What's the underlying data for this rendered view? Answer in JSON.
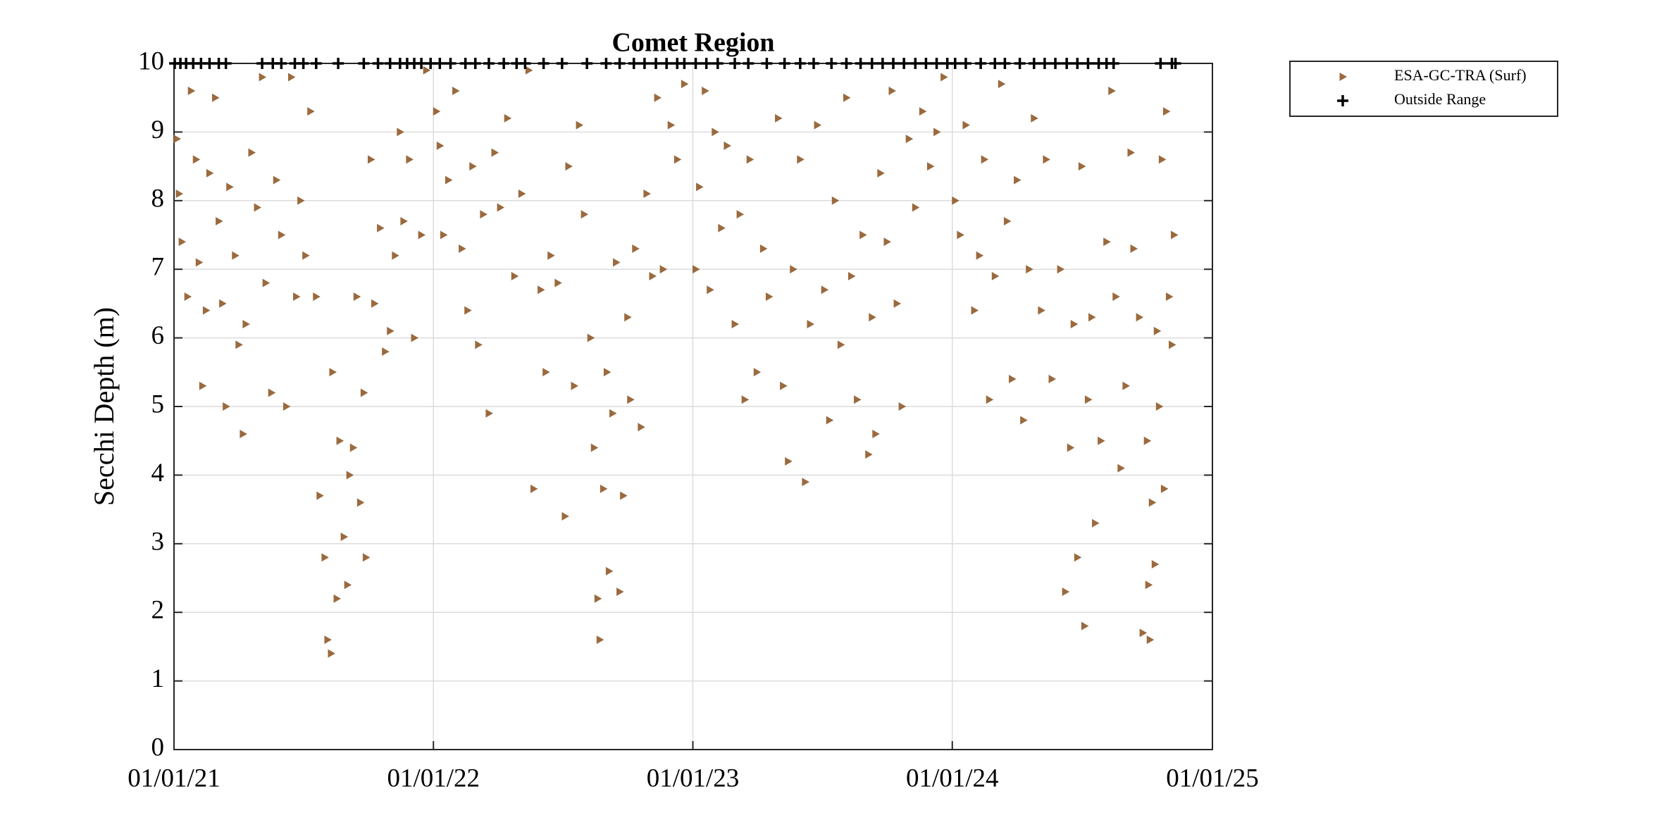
{
  "chart_data": {
    "type": "scatter",
    "title": "Comet Region",
    "y_label": "Secchi Depth (m)",
    "xlim": [
      "2021-01-01",
      "2025-01-01"
    ],
    "xticks": [
      {
        "value": "2021-01-01",
        "label": "01/01/21"
      },
      {
        "value": "2022-01-01",
        "label": "01/01/22"
      },
      {
        "value": "2023-01-01",
        "label": "01/01/23"
      },
      {
        "value": "2024-01-01",
        "label": "01/01/24"
      },
      {
        "value": "2025-01-01",
        "label": "01/01/25"
      }
    ],
    "ylim": [
      0,
      10
    ],
    "yticks": [
      0,
      1,
      2,
      3,
      4,
      5,
      6,
      7,
      8,
      9,
      10
    ],
    "grid": true,
    "legend": "outside-right",
    "series": [
      {
        "name": "ESA-GC-TRA (Surf)",
        "color": "#9a6a3e",
        "marker": "triangle-right",
        "x": [
          "2021-01-05",
          "2021-01-08",
          "2021-01-12",
          "2021-01-20",
          "2021-01-25",
          "2021-02-01",
          "2021-02-05",
          "2021-02-10",
          "2021-02-15",
          "2021-02-20",
          "2021-02-28",
          "2021-03-05",
          "2021-03-10",
          "2021-03-15",
          "2021-03-20",
          "2021-03-28",
          "2021-04-02",
          "2021-04-08",
          "2021-04-12",
          "2021-04-20",
          "2021-04-28",
          "2021-05-05",
          "2021-05-10",
          "2021-05-18",
          "2021-05-25",
          "2021-06-01",
          "2021-06-08",
          "2021-06-15",
          "2021-06-22",
          "2021-06-28",
          "2021-07-05",
          "2021-07-12",
          "2021-07-20",
          "2021-07-25",
          "2021-08-01",
          "2021-08-05",
          "2021-08-10",
          "2021-08-12",
          "2021-08-18",
          "2021-08-22",
          "2021-08-28",
          "2021-09-02",
          "2021-09-05",
          "2021-09-10",
          "2021-09-15",
          "2021-09-20",
          "2021-09-25",
          "2021-09-28",
          "2021-10-05",
          "2021-10-10",
          "2021-10-18",
          "2021-10-25",
          "2021-11-01",
          "2021-11-08",
          "2021-11-15",
          "2021-11-20",
          "2021-11-28",
          "2021-12-05",
          "2021-12-15",
          "2021-12-22",
          "2022-01-05",
          "2022-01-10",
          "2022-01-15",
          "2022-01-22",
          "2022-02-01",
          "2022-02-10",
          "2022-02-18",
          "2022-02-25",
          "2022-03-05",
          "2022-03-12",
          "2022-03-20",
          "2022-03-28",
          "2022-04-05",
          "2022-04-15",
          "2022-04-25",
          "2022-05-05",
          "2022-05-15",
          "2022-05-22",
          "2022-06-01",
          "2022-06-08",
          "2022-06-15",
          "2022-06-25",
          "2022-07-05",
          "2022-07-10",
          "2022-07-18",
          "2022-07-25",
          "2022-08-01",
          "2022-08-10",
          "2022-08-15",
          "2022-08-20",
          "2022-08-23",
          "2022-08-28",
          "2022-09-02",
          "2022-09-05",
          "2022-09-10",
          "2022-09-15",
          "2022-09-20",
          "2022-09-25",
          "2022-10-01",
          "2022-10-05",
          "2022-10-12",
          "2022-10-20",
          "2022-10-28",
          "2022-11-05",
          "2022-11-12",
          "2022-11-20",
          "2022-12-01",
          "2022-12-10",
          "2022-12-20",
          "2023-01-05",
          "2023-01-10",
          "2023-01-18",
          "2023-01-25",
          "2023-02-01",
          "2023-02-10",
          "2023-02-18",
          "2023-03-01",
          "2023-03-08",
          "2023-03-15",
          "2023-03-22",
          "2023-04-01",
          "2023-04-10",
          "2023-04-18",
          "2023-05-01",
          "2023-05-08",
          "2023-05-15",
          "2023-05-22",
          "2023-06-01",
          "2023-06-08",
          "2023-06-15",
          "2023-06-25",
          "2023-07-05",
          "2023-07-12",
          "2023-07-20",
          "2023-07-28",
          "2023-08-05",
          "2023-08-12",
          "2023-08-20",
          "2023-08-28",
          "2023-09-05",
          "2023-09-10",
          "2023-09-15",
          "2023-09-22",
          "2023-10-01",
          "2023-10-08",
          "2023-10-15",
          "2023-10-22",
          "2023-11-01",
          "2023-11-10",
          "2023-11-20",
          "2023-12-01",
          "2023-12-10",
          "2023-12-20",
          "2024-01-05",
          "2024-01-12",
          "2024-01-20",
          "2024-02-01",
          "2024-02-08",
          "2024-02-15",
          "2024-02-22",
          "2024-03-01",
          "2024-03-10",
          "2024-03-18",
          "2024-03-25",
          "2024-04-01",
          "2024-04-10",
          "2024-04-18",
          "2024-04-25",
          "2024-05-05",
          "2024-05-12",
          "2024-05-20",
          "2024-06-01",
          "2024-06-08",
          "2024-06-15",
          "2024-06-20",
          "2024-06-25",
          "2024-07-01",
          "2024-07-05",
          "2024-07-10",
          "2024-07-15",
          "2024-07-20",
          "2024-07-28",
          "2024-08-05",
          "2024-08-12",
          "2024-08-18",
          "2024-08-25",
          "2024-09-01",
          "2024-09-08",
          "2024-09-12",
          "2024-09-20",
          "2024-09-25",
          "2024-10-01",
          "2024-10-03",
          "2024-10-05",
          "2024-10-08",
          "2024-10-12",
          "2024-10-15",
          "2024-10-18",
          "2024-10-22",
          "2024-10-25",
          "2024-10-28",
          "2024-11-01",
          "2024-11-05",
          "2024-11-08"
        ],
        "values": [
          8.9,
          8.1,
          7.4,
          6.6,
          9.6,
          8.6,
          7.1,
          5.3,
          6.4,
          8.4,
          9.5,
          7.7,
          6.5,
          5.0,
          8.2,
          7.2,
          5.9,
          4.6,
          6.2,
          8.7,
          7.9,
          9.8,
          6.8,
          5.2,
          8.3,
          7.5,
          5.0,
          9.8,
          6.6,
          8.0,
          7.2,
          9.3,
          6.6,
          3.7,
          2.8,
          1.6,
          1.4,
          5.5,
          2.2,
          4.5,
          3.1,
          2.4,
          4.0,
          4.4,
          6.6,
          3.6,
          5.2,
          2.8,
          8.6,
          6.5,
          7.6,
          5.8,
          6.1,
          7.2,
          9.0,
          7.7,
          8.6,
          6.0,
          7.5,
          9.9,
          9.3,
          8.8,
          7.5,
          8.3,
          9.6,
          7.3,
          6.4,
          8.5,
          5.9,
          7.8,
          4.9,
          8.7,
          7.9,
          9.2,
          6.9,
          8.1,
          9.9,
          3.8,
          6.7,
          5.5,
          7.2,
          6.8,
          3.4,
          8.5,
          5.3,
          9.1,
          7.8,
          6.0,
          4.4,
          2.2,
          1.6,
          3.8,
          5.5,
          2.6,
          4.9,
          7.1,
          2.3,
          3.7,
          6.3,
          5.1,
          7.3,
          4.7,
          8.1,
          6.9,
          9.5,
          7.0,
          9.1,
          8.6,
          9.7,
          7.0,
          8.2,
          9.6,
          6.7,
          9.0,
          7.6,
          8.8,
          6.2,
          7.8,
          5.1,
          8.6,
          5.5,
          7.3,
          6.6,
          9.2,
          5.3,
          4.2,
          7.0,
          8.6,
          3.9,
          6.2,
          9.1,
          6.7,
          4.8,
          8.0,
          5.9,
          9.5,
          6.9,
          5.1,
          7.5,
          4.3,
          6.3,
          4.6,
          8.4,
          7.4,
          9.6,
          6.5,
          5.0,
          8.9,
          7.9,
          9.3,
          8.5,
          9.0,
          9.8,
          8.0,
          7.5,
          9.1,
          6.4,
          7.2,
          8.6,
          5.1,
          6.9,
          9.7,
          7.7,
          5.4,
          8.3,
          4.8,
          7.0,
          9.2,
          6.4,
          8.6,
          5.4,
          7.0,
          2.3,
          4.4,
          6.2,
          2.8,
          8.5,
          1.8,
          5.1,
          6.3,
          3.3,
          4.5,
          7.4,
          9.6,
          6.6,
          4.1,
          5.3,
          8.7,
          7.3,
          6.3,
          1.7,
          4.5,
          2.4,
          1.6,
          3.6,
          2.7,
          6.1,
          5.0,
          8.6,
          3.8,
          9.3,
          6.6,
          5.9,
          7.5
        ]
      },
      {
        "name": "Outside Range",
        "color": "#000000",
        "marker": "plus",
        "x": [
          "2021-01-02",
          "2021-01-10",
          "2021-01-18",
          "2021-01-28",
          "2021-02-08",
          "2021-02-20",
          "2021-03-05",
          "2021-03-15",
          "2021-05-05",
          "2021-05-20",
          "2021-06-01",
          "2021-06-20",
          "2021-07-02",
          "2021-07-20",
          "2021-08-20",
          "2021-09-25",
          "2021-10-15",
          "2021-11-01",
          "2021-11-15",
          "2021-11-25",
          "2021-12-05",
          "2021-12-15",
          "2021-12-28",
          "2022-01-10",
          "2022-01-25",
          "2022-02-15",
          "2022-03-01",
          "2022-03-20",
          "2022-04-10",
          "2022-04-28",
          "2022-05-10",
          "2022-06-05",
          "2022-07-01",
          "2022-08-05",
          "2022-09-01",
          "2022-09-20",
          "2022-10-10",
          "2022-10-25",
          "2022-11-10",
          "2022-11-25",
          "2022-12-10",
          "2022-12-20",
          "2023-01-05",
          "2023-01-20",
          "2023-02-05",
          "2023-03-01",
          "2023-03-20",
          "2023-04-15",
          "2023-05-10",
          "2023-06-01",
          "2023-06-20",
          "2023-07-15",
          "2023-08-05",
          "2023-08-25",
          "2023-09-10",
          "2023-09-25",
          "2023-10-10",
          "2023-10-25",
          "2023-11-10",
          "2023-11-25",
          "2023-12-10",
          "2023-12-25",
          "2024-01-05",
          "2024-01-20",
          "2024-02-10",
          "2024-03-01",
          "2024-03-15",
          "2024-04-05",
          "2024-04-25",
          "2024-05-10",
          "2024-05-25",
          "2024-06-10",
          "2024-06-25",
          "2024-07-10",
          "2024-07-25",
          "2024-08-05",
          "2024-08-15",
          "2024-10-20",
          "2024-11-05",
          "2024-11-10"
        ],
        "values": [
          10,
          10,
          10,
          10,
          10,
          10,
          10,
          10,
          10,
          10,
          10,
          10,
          10,
          10,
          10,
          10,
          10,
          10,
          10,
          10,
          10,
          10,
          10,
          10,
          10,
          10,
          10,
          10,
          10,
          10,
          10,
          10,
          10,
          10,
          10,
          10,
          10,
          10,
          10,
          10,
          10,
          10,
          10,
          10,
          10,
          10,
          10,
          10,
          10,
          10,
          10,
          10,
          10,
          10,
          10,
          10,
          10,
          10,
          10,
          10,
          10,
          10,
          10,
          10,
          10,
          10,
          10,
          10,
          10,
          10,
          10,
          10,
          10,
          10,
          10,
          10,
          10,
          10,
          10,
          10
        ]
      }
    ]
  }
}
